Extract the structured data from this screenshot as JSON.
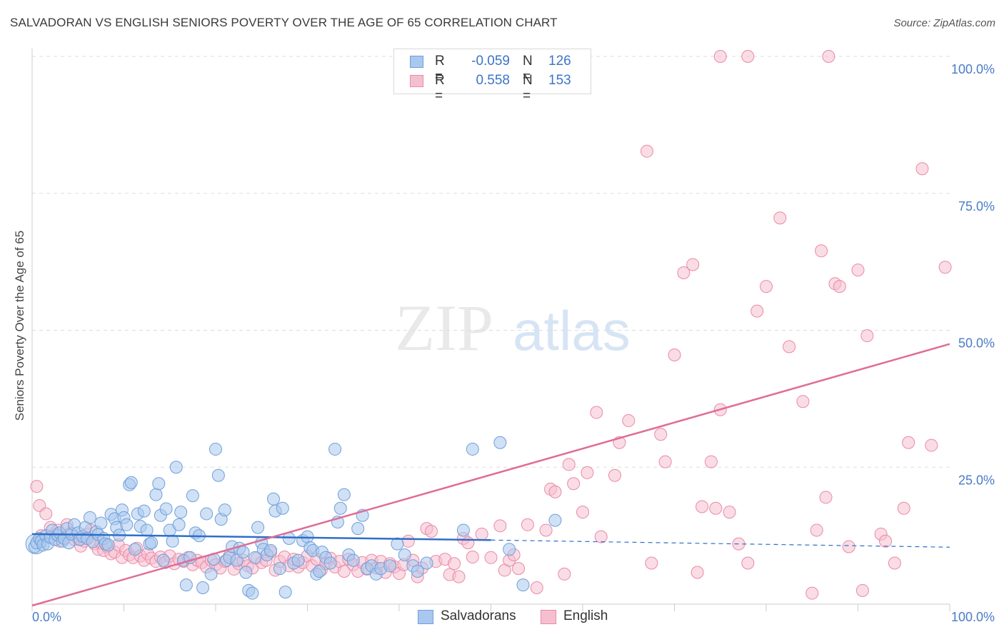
{
  "title": "SALVADORAN VS ENGLISH SENIORS POVERTY OVER THE AGE OF 65 CORRELATION CHART",
  "source": "Source: ZipAtlas.com",
  "watermark": {
    "zip": "ZIP",
    "atlas": "atlas"
  },
  "legend": {
    "r_label": "R =",
    "n_label": "N =",
    "rows": [
      {
        "r": "-0.059",
        "n": "126"
      },
      {
        "r": "0.558",
        "n": "153"
      }
    ]
  },
  "colors": {
    "blue_fill": "#a9c8ef",
    "blue_stroke": "#6f9fd8",
    "blue_line": "#2f6ec7",
    "pink_fill": "#f6bfd0",
    "pink_stroke": "#e98aa8",
    "pink_line": "#e06c97",
    "tick_text": "#4a7cc8",
    "grid": "#dddddd"
  },
  "chart_data": {
    "type": "scatter",
    "title": "SALVADORAN VS ENGLISH SENIORS POVERTY OVER THE AGE OF 65 CORRELATION CHART",
    "xlabel": "",
    "ylabel": "Seniors Poverty Over the Age of 65",
    "xlim": [
      0,
      100
    ],
    "ylim": [
      0,
      100
    ],
    "x_tick_labels": [
      "0.0%",
      "100.0%"
    ],
    "y_tick_labels": [
      "25.0%",
      "50.0%",
      "75.0%",
      "100.0%"
    ],
    "y_ticks": [
      25,
      50,
      75,
      100
    ],
    "grid": true,
    "legend_position": "bottom",
    "series": [
      {
        "name": "Salvadorans",
        "r": -0.059,
        "n": 126,
        "trend": {
          "x": [
            0,
            50
          ],
          "y": [
            12.8,
            11.7
          ],
          "dashed_to": [
            100,
            10.4
          ]
        },
        "points": [
          [
            0.3,
            10.5
          ],
          [
            0.5,
            11.2
          ],
          [
            0.8,
            12.0
          ],
          [
            1.0,
            11.5
          ],
          [
            1.2,
            10.8
          ],
          [
            1.5,
            12.5
          ],
          [
            1.7,
            11.0
          ],
          [
            2.0,
            12.2
          ],
          [
            2.2,
            13.5
          ],
          [
            2.5,
            11.8
          ],
          [
            2.8,
            12.6
          ],
          [
            3.0,
            13.0
          ],
          [
            3.3,
            11.5
          ],
          [
            3.5,
            12.0
          ],
          [
            3.8,
            13.8
          ],
          [
            4.0,
            11.2
          ],
          [
            4.3,
            12.8
          ],
          [
            4.6,
            14.5
          ],
          [
            5.0,
            13.0
          ],
          [
            5.2,
            11.8
          ],
          [
            5.5,
            12.4
          ],
          [
            5.8,
            14.0
          ],
          [
            6.0,
            12.0
          ],
          [
            6.3,
            15.8
          ],
          [
            6.6,
            11.4
          ],
          [
            7.0,
            13.2
          ],
          [
            7.2,
            12.7
          ],
          [
            7.5,
            14.8
          ],
          [
            7.8,
            12.0
          ],
          [
            8.0,
            11.0
          ],
          [
            8.3,
            10.8
          ],
          [
            8.6,
            16.4
          ],
          [
            9.0,
            15.6
          ],
          [
            9.2,
            14.0
          ],
          [
            9.5,
            12.6
          ],
          [
            9.8,
            17.2
          ],
          [
            10.0,
            15.8
          ],
          [
            10.3,
            14.5
          ],
          [
            10.6,
            21.8
          ],
          [
            10.8,
            22.2
          ],
          [
            11.2,
            10.0
          ],
          [
            11.5,
            16.5
          ],
          [
            11.8,
            14.2
          ],
          [
            12.2,
            17.0
          ],
          [
            12.5,
            13.5
          ],
          [
            12.8,
            11.0
          ],
          [
            13.0,
            11.2
          ],
          [
            13.5,
            20.0
          ],
          [
            13.8,
            22.0
          ],
          [
            14.0,
            16.2
          ],
          [
            14.3,
            8.0
          ],
          [
            14.6,
            17.4
          ],
          [
            15.0,
            13.5
          ],
          [
            15.3,
            11.5
          ],
          [
            15.7,
            25.0
          ],
          [
            16.0,
            14.5
          ],
          [
            16.2,
            16.8
          ],
          [
            16.5,
            8.0
          ],
          [
            16.8,
            3.5
          ],
          [
            17.2,
            8.5
          ],
          [
            17.5,
            19.8
          ],
          [
            17.8,
            13.0
          ],
          [
            18.2,
            12.5
          ],
          [
            18.6,
            3.0
          ],
          [
            19.0,
            16.5
          ],
          [
            19.5,
            5.5
          ],
          [
            19.8,
            8.2
          ],
          [
            20.0,
            28.3
          ],
          [
            20.3,
            23.5
          ],
          [
            20.6,
            15.5
          ],
          [
            21.0,
            17.2
          ],
          [
            21.2,
            8.0
          ],
          [
            21.5,
            8.5
          ],
          [
            21.8,
            10.5
          ],
          [
            22.3,
            8.0
          ],
          [
            22.6,
            10.2
          ],
          [
            23.0,
            9.5
          ],
          [
            23.3,
            5.8
          ],
          [
            23.6,
            2.5
          ],
          [
            24.0,
            2.0
          ],
          [
            24.3,
            8.5
          ],
          [
            24.6,
            14.0
          ],
          [
            25.0,
            11.2
          ],
          [
            25.2,
            10.0
          ],
          [
            25.6,
            9.0
          ],
          [
            26.0,
            9.8
          ],
          [
            26.3,
            19.2
          ],
          [
            26.5,
            17.0
          ],
          [
            27.0,
            6.5
          ],
          [
            27.3,
            17.5
          ],
          [
            27.6,
            2.2
          ],
          [
            28.0,
            12.0
          ],
          [
            28.5,
            7.5
          ],
          [
            29.0,
            8.0
          ],
          [
            29.5,
            11.6
          ],
          [
            30.0,
            12.3
          ],
          [
            30.3,
            10.3
          ],
          [
            30.6,
            9.8
          ],
          [
            31.0,
            5.5
          ],
          [
            31.3,
            6.0
          ],
          [
            31.6,
            9.5
          ],
          [
            32.0,
            8.5
          ],
          [
            32.5,
            7.5
          ],
          [
            33.0,
            28.3
          ],
          [
            33.3,
            15.0
          ],
          [
            33.6,
            17.5
          ],
          [
            34.0,
            20.0
          ],
          [
            34.5,
            9.0
          ],
          [
            35.0,
            8.0
          ],
          [
            35.5,
            13.8
          ],
          [
            36.0,
            16.2
          ],
          [
            36.5,
            6.5
          ],
          [
            37.0,
            7.0
          ],
          [
            37.5,
            5.5
          ],
          [
            38.0,
            6.5
          ],
          [
            39.0,
            7.0
          ],
          [
            39.8,
            11.0
          ],
          [
            40.6,
            9.0
          ],
          [
            41.5,
            7.0
          ],
          [
            42.0,
            6.0
          ],
          [
            43.0,
            7.5
          ],
          [
            47.0,
            13.5
          ],
          [
            48.0,
            28.3
          ],
          [
            51.0,
            29.5
          ],
          [
            52.0,
            10.0
          ],
          [
            53.5,
            3.5
          ],
          [
            57.0,
            15.3
          ]
        ]
      },
      {
        "name": "English",
        "r": 0.558,
        "n": 153,
        "trend": {
          "x": [
            0,
            100
          ],
          "y": [
            0,
            47.5
          ]
        },
        "points": [
          [
            0.5,
            21.5
          ],
          [
            0.8,
            18.0
          ],
          [
            1.0,
            12.5
          ],
          [
            1.5,
            16.5
          ],
          [
            2.0,
            14.0
          ],
          [
            2.5,
            12.8
          ],
          [
            2.8,
            13.5
          ],
          [
            3.0,
            11.5
          ],
          [
            3.3,
            12.2
          ],
          [
            3.8,
            14.5
          ],
          [
            4.2,
            13.0
          ],
          [
            4.6,
            11.8
          ],
          [
            5.0,
            12.0
          ],
          [
            5.3,
            10.6
          ],
          [
            5.7,
            11.5
          ],
          [
            6.0,
            12.8
          ],
          [
            6.4,
            13.5
          ],
          [
            6.8,
            11.0
          ],
          [
            7.2,
            10.0
          ],
          [
            7.5,
            11.2
          ],
          [
            7.8,
            9.8
          ],
          [
            8.2,
            10.5
          ],
          [
            8.6,
            9.2
          ],
          [
            9.0,
            9.5
          ],
          [
            9.4,
            10.8
          ],
          [
            9.8,
            8.5
          ],
          [
            10.2,
            9.8
          ],
          [
            10.6,
            9.0
          ],
          [
            11.0,
            8.5
          ],
          [
            11.4,
            10.2
          ],
          [
            11.8,
            8.8
          ],
          [
            12.2,
            8.0
          ],
          [
            12.6,
            9.2
          ],
          [
            13.0,
            8.4
          ],
          [
            13.5,
            7.8
          ],
          [
            14.0,
            8.6
          ],
          [
            14.5,
            7.6
          ],
          [
            15.0,
            8.8
          ],
          [
            15.5,
            7.4
          ],
          [
            16.0,
            8.2
          ],
          [
            16.5,
            7.8
          ],
          [
            17.0,
            8.5
          ],
          [
            17.5,
            7.2
          ],
          [
            18.0,
            8.0
          ],
          [
            18.5,
            7.6
          ],
          [
            19.0,
            6.8
          ],
          [
            19.5,
            8.0
          ],
          [
            20.0,
            7.2
          ],
          [
            20.5,
            6.6
          ],
          [
            21.0,
            7.8
          ],
          [
            21.5,
            8.8
          ],
          [
            22.0,
            6.4
          ],
          [
            22.5,
            7.4
          ],
          [
            23.0,
            8.0
          ],
          [
            23.5,
            7.0
          ],
          [
            24.0,
            6.6
          ],
          [
            24.5,
            8.4
          ],
          [
            25.0,
            7.6
          ],
          [
            25.5,
            8.0
          ],
          [
            26.0,
            9.5
          ],
          [
            26.5,
            6.2
          ],
          [
            27.0,
            7.8
          ],
          [
            27.5,
            8.6
          ],
          [
            28.0,
            7.0
          ],
          [
            28.5,
            8.2
          ],
          [
            29.0,
            6.8
          ],
          [
            29.5,
            7.6
          ],
          [
            30.0,
            8.8
          ],
          [
            30.5,
            7.0
          ],
          [
            31.0,
            8.2
          ],
          [
            31.5,
            6.2
          ],
          [
            32.0,
            7.4
          ],
          [
            32.5,
            8.4
          ],
          [
            33.0,
            6.8
          ],
          [
            33.5,
            7.8
          ],
          [
            34.0,
            6.0
          ],
          [
            34.5,
            8.2
          ],
          [
            35.0,
            7.2
          ],
          [
            35.5,
            6.0
          ],
          [
            36.0,
            7.6
          ],
          [
            36.5,
            6.4
          ],
          [
            37.0,
            8.0
          ],
          [
            37.5,
            6.6
          ],
          [
            38.0,
            7.8
          ],
          [
            38.5,
            5.8
          ],
          [
            39.0,
            7.4
          ],
          [
            39.5,
            6.8
          ],
          [
            40.0,
            5.6
          ],
          [
            40.5,
            7.2
          ],
          [
            41.0,
            11.5
          ],
          [
            41.5,
            8.0
          ],
          [
            42.0,
            5.0
          ],
          [
            42.5,
            6.6
          ],
          [
            43.0,
            13.8
          ],
          [
            43.5,
            13.3
          ],
          [
            44.0,
            7.8
          ],
          [
            45.0,
            8.2
          ],
          [
            45.5,
            5.4
          ],
          [
            46.0,
            7.4
          ],
          [
            46.5,
            5.0
          ],
          [
            47.0,
            12.0
          ],
          [
            47.5,
            11.2
          ],
          [
            48.0,
            8.6
          ],
          [
            49.0,
            12.8
          ],
          [
            50.0,
            8.5
          ],
          [
            51.0,
            14.3
          ],
          [
            51.5,
            6.2
          ],
          [
            52.0,
            8.0
          ],
          [
            52.5,
            9.0
          ],
          [
            53.0,
            6.5
          ],
          [
            54.0,
            14.5
          ],
          [
            55.0,
            3.0
          ],
          [
            56.0,
            13.5
          ],
          [
            56.5,
            21.0
          ],
          [
            57.0,
            20.5
          ],
          [
            58.0,
            5.5
          ],
          [
            58.5,
            25.5
          ],
          [
            59.0,
            22.0
          ],
          [
            60.0,
            16.8
          ],
          [
            60.5,
            24.0
          ],
          [
            61.5,
            35.0
          ],
          [
            62.0,
            12.3
          ],
          [
            63.5,
            23.5
          ],
          [
            64.0,
            29.5
          ],
          [
            65.0,
            33.5
          ],
          [
            67.0,
            82.7
          ],
          [
            67.5,
            7.5
          ],
          [
            68.5,
            31.0
          ],
          [
            69.0,
            26.0
          ],
          [
            70.0,
            45.5
          ],
          [
            71.0,
            60.5
          ],
          [
            72.0,
            62.0
          ],
          [
            72.5,
            5.8
          ],
          [
            73.0,
            17.8
          ],
          [
            74.0,
            26.0
          ],
          [
            74.5,
            17.5
          ],
          [
            75.0,
            35.5
          ],
          [
            76.0,
            16.8
          ],
          [
            77.0,
            11.0
          ],
          [
            78.0,
            7.5
          ],
          [
            79.0,
            53.5
          ],
          [
            80.0,
            58.0
          ],
          [
            81.5,
            70.5
          ],
          [
            82.5,
            47.0
          ],
          [
            84.0,
            37.0
          ],
          [
            85.0,
            2.0
          ],
          [
            85.5,
            13.5
          ],
          [
            86.0,
            64.5
          ],
          [
            86.5,
            19.5
          ],
          [
            87.5,
            58.5
          ],
          [
            88.0,
            58.0
          ],
          [
            89.0,
            10.5
          ],
          [
            90.0,
            61.0
          ],
          [
            90.5,
            2.5
          ],
          [
            91.0,
            49.0
          ],
          [
            92.5,
            12.8
          ],
          [
            93.0,
            11.5
          ],
          [
            94.0,
            7.5
          ],
          [
            95.0,
            17.5
          ],
          [
            95.5,
            29.5
          ],
          [
            97.0,
            79.5
          ],
          [
            98.0,
            29.0
          ],
          [
            99.5,
            61.5
          ]
        ]
      }
    ],
    "top_outliers_pink": [
      [
        75.0,
        100
      ],
      [
        78.0,
        100
      ],
      [
        86.8,
        100
      ]
    ]
  }
}
